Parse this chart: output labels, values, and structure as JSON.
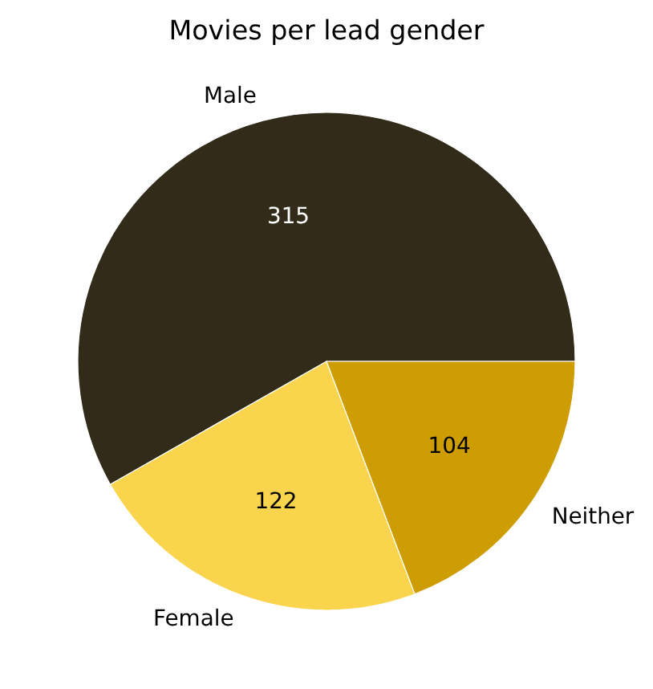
{
  "chart_data": {
    "type": "pie",
    "title": "Movies per lead gender",
    "categories": [
      "Male",
      "Female",
      "Neither"
    ],
    "values": [
      315,
      122,
      104
    ],
    "colors": [
      "#322b1a",
      "#f9d44c",
      "#cd9d03"
    ],
    "data_labels": true
  }
}
